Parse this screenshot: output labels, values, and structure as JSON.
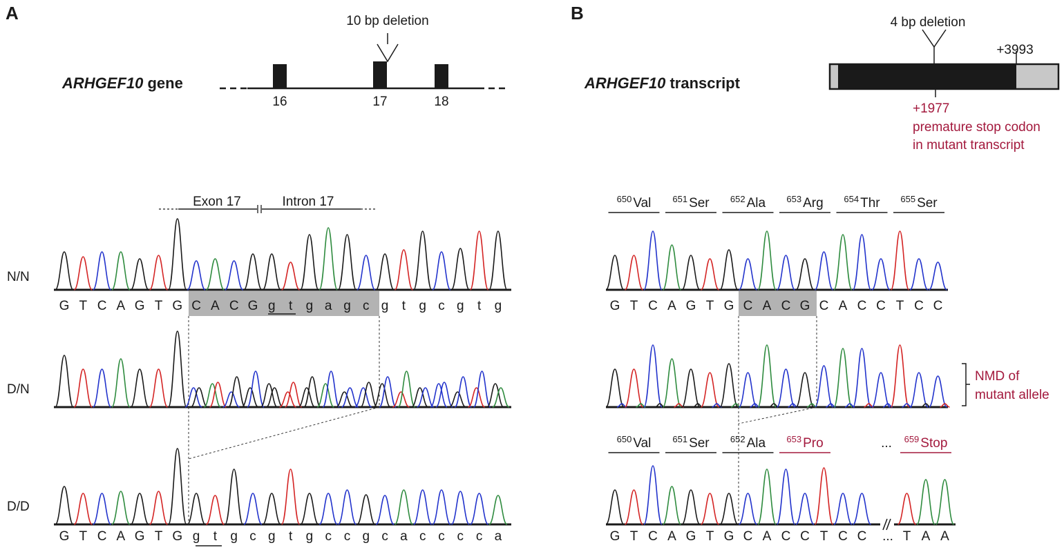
{
  "panel_a": {
    "letter": "A",
    "gene_label_italic": "ARHGEF10",
    "gene_label_rest": " gene",
    "deletion_label": "10 bp deletion",
    "exons": [
      "16",
      "17",
      "18"
    ],
    "exon_label": "Exon 17",
    "intron_label": "Intron 17",
    "rows": [
      {
        "genotype": "N/N",
        "bases": [
          "G",
          "T",
          "C",
          "A",
          "G",
          "T",
          "G",
          "C",
          "A",
          "C",
          "G",
          "g",
          "t",
          "g",
          "a",
          "g",
          "c",
          "g",
          "t",
          "g",
          "c",
          "g",
          "t",
          "g"
        ]
      },
      {
        "genotype": "D/N",
        "bases": []
      },
      {
        "genotype": "D/D",
        "bases": [
          "G",
          "T",
          "C",
          "A",
          "G",
          "T",
          "G",
          "g",
          "t",
          "g",
          "c",
          "g",
          "t",
          "g",
          "c",
          "c",
          "g",
          "c",
          "a",
          "c",
          "c",
          "c",
          "c",
          "a"
        ]
      }
    ]
  },
  "panel_b": {
    "letter": "B",
    "transcript_label_italic": "ARHGEF10",
    "transcript_label_rest": " transcript",
    "deletion_label": "4 bp deletion",
    "end_position": "+3993",
    "stop_position": "+1977",
    "stop_note_line1": "premature stop codon",
    "stop_note_line2": "in mutant transcript",
    "codons_normal": [
      {
        "num": "650",
        "aa": "Val"
      },
      {
        "num": "651",
        "aa": "Ser"
      },
      {
        "num": "652",
        "aa": "Ala"
      },
      {
        "num": "653",
        "aa": "Arg"
      },
      {
        "num": "654",
        "aa": "Thr"
      },
      {
        "num": "655",
        "aa": "Ser"
      }
    ],
    "codons_mutant": [
      {
        "num": "650",
        "aa": "Val"
      },
      {
        "num": "651",
        "aa": "Ser"
      },
      {
        "num": "652",
        "aa": "Ala"
      },
      {
        "num": "653",
        "aa": "Pro"
      },
      {
        "num": "659",
        "aa": "Stop"
      }
    ],
    "ellipsis": "...",
    "nmd_line1": "NMD of",
    "nmd_line2": "mutant allele",
    "bases_normal": [
      "G",
      "T",
      "C",
      "A",
      "G",
      "T",
      "G",
      "C",
      "A",
      "C",
      "G",
      "C",
      "A",
      "C",
      "C",
      "T",
      "C",
      "C"
    ],
    "bases_mutant": [
      "G",
      "T",
      "C",
      "A",
      "G",
      "T",
      "G",
      "C",
      "A",
      "C",
      "C",
      "T",
      "C",
      "C",
      "...",
      "T",
      "A",
      "A"
    ]
  },
  "colors": {
    "A": "#2e8b3e",
    "C": "#2233cc",
    "G": "#1a1a1a",
    "T": "#d42424",
    "highlight": "#b3b3b3",
    "accent": "#a3193d"
  }
}
